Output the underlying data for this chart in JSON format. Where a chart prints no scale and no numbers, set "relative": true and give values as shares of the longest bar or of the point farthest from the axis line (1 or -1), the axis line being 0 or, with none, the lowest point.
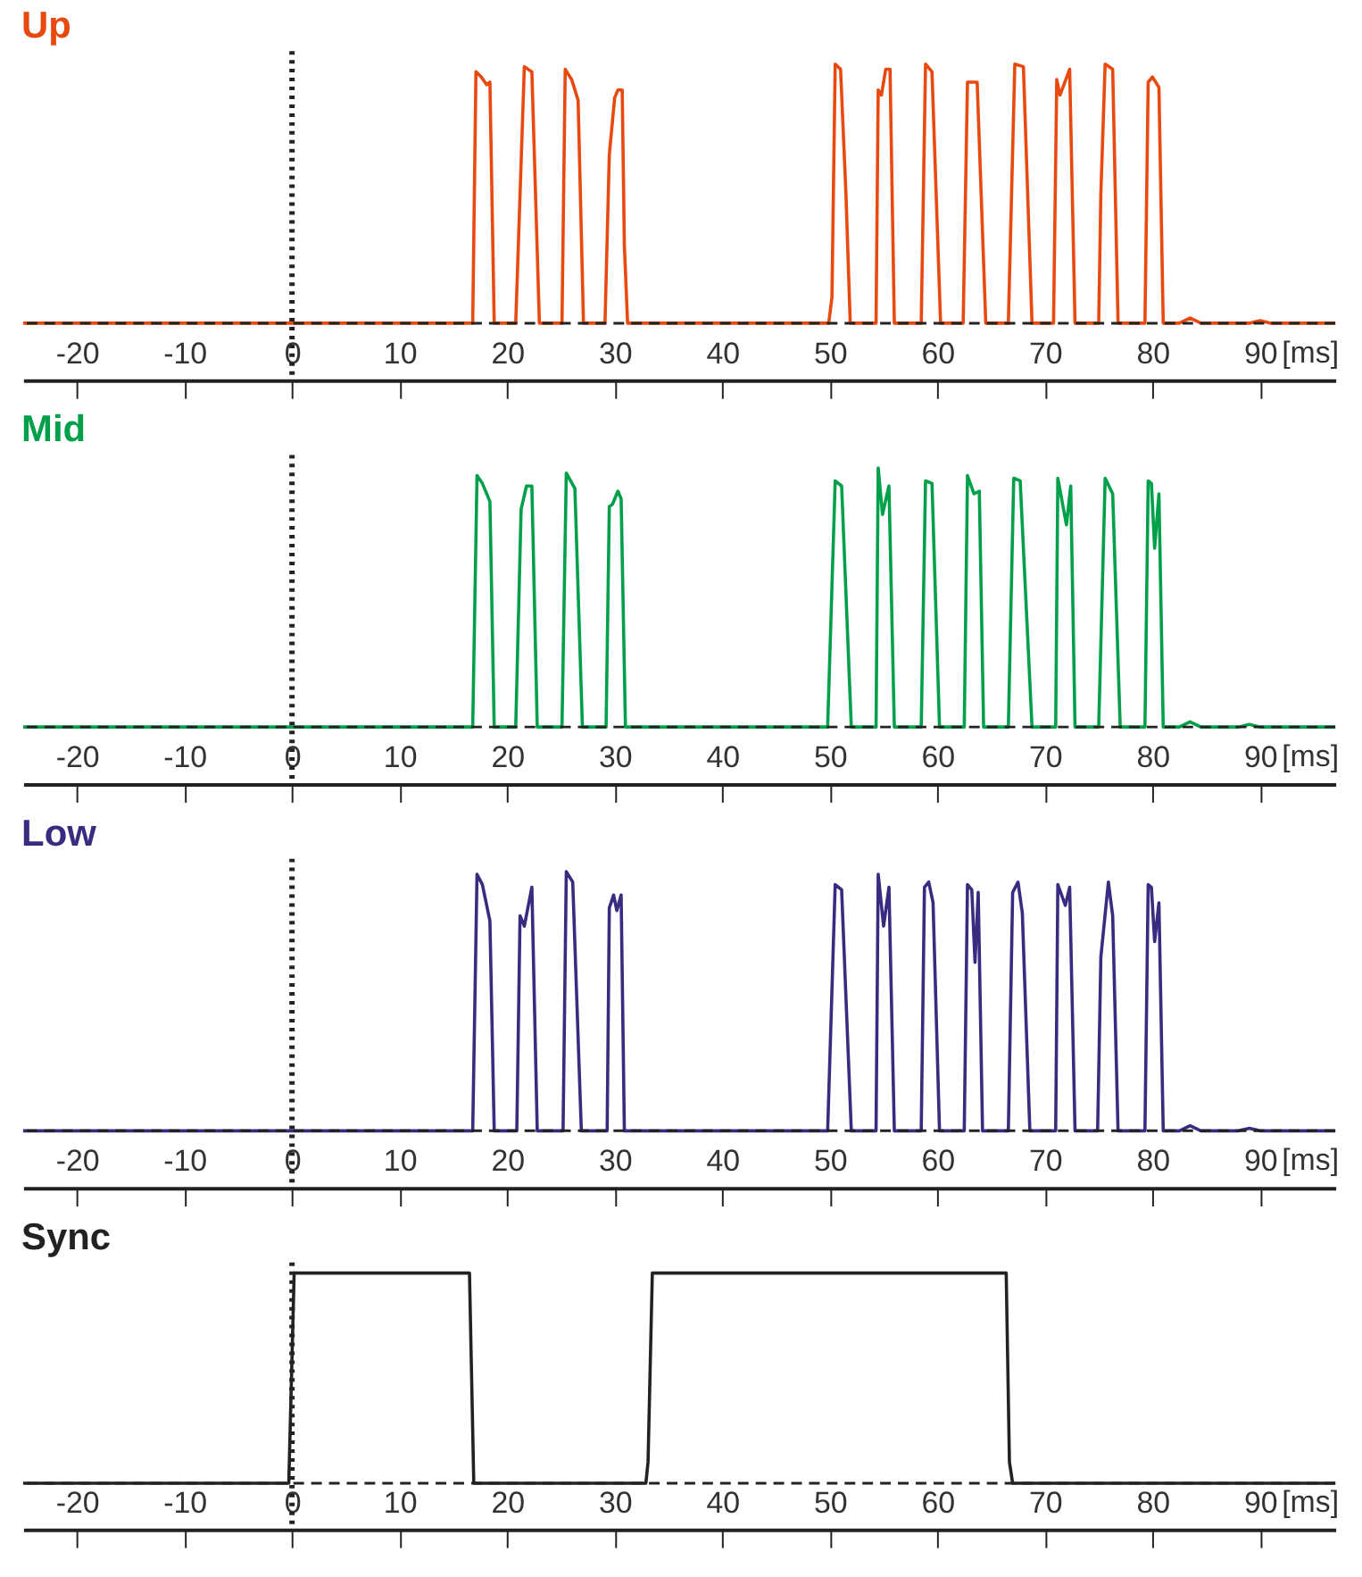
{
  "chart_data": [
    {
      "type": "line",
      "title": "Up",
      "xlabel": "[ms]",
      "relative": true,
      "xlim": [
        -25,
        97
      ],
      "xticks": [
        -20,
        -10,
        0,
        10,
        20,
        30,
        40,
        50,
        60,
        70,
        80,
        90
      ],
      "ref_lines": [
        {
          "axis": "x",
          "value": 0,
          "color": "#222222",
          "line_style": "dotted"
        },
        {
          "axis": "y",
          "value": 0,
          "color": "#222222",
          "line_style": "dashed"
        }
      ],
      "series": [
        {
          "color": "#e8490f",
          "x": [
            -25,
            16.8,
            17.1,
            17.6,
            18.1,
            18.4,
            18.8,
            20.8,
            21.6,
            22.3,
            23.0,
            25.1,
            25.4,
            26.0,
            26.6,
            27.1,
            29.1,
            29.5,
            30.0,
            30.3,
            30.7,
            30.9,
            31.2,
            49.9,
            50.2,
            50.5,
            51.0,
            51.5,
            51.9,
            54.3,
            54.5,
            54.8,
            55.2,
            55.6,
            56.0,
            58.5,
            58.9,
            59.5,
            60.3,
            62.4,
            62.8,
            63.7,
            64.5,
            66.6,
            67.2,
            68.0,
            68.8,
            70.8,
            71.1,
            71.4,
            72.3,
            72.8,
            75.0,
            75.2,
            75.6,
            76.3,
            76.8,
            79.3,
            79.6,
            80.0,
            80.6,
            81.0,
            82.5,
            83.5,
            84.5,
            89,
            90,
            91,
            97
          ],
          "values": [
            0,
            0,
            0.97,
            0.95,
            0.92,
            0.93,
            0,
            0,
            0.99,
            0.97,
            0,
            0,
            0.98,
            0.94,
            0.86,
            0,
            0,
            0.65,
            0.87,
            0.9,
            0.9,
            0.3,
            0,
            0,
            0.1,
            1.0,
            0.98,
            0.5,
            0,
            0,
            0.9,
            0.88,
            0.98,
            0.98,
            0,
            0,
            1.0,
            0.97,
            0,
            0,
            0.93,
            0.93,
            0,
            0,
            1.0,
            0.99,
            0,
            0,
            0.94,
            0.88,
            0.98,
            0,
            0,
            0.5,
            1.0,
            0.98,
            0,
            0,
            0.93,
            0.95,
            0.91,
            0,
            0,
            0.02,
            0,
            0,
            0.01,
            0,
            0
          ]
        }
      ]
    },
    {
      "type": "line",
      "title": "Mid",
      "xlabel": "[ms]",
      "relative": true,
      "xlim": [
        -25,
        97
      ],
      "xticks": [
        -20,
        -10,
        0,
        10,
        20,
        30,
        40,
        50,
        60,
        70,
        80,
        90
      ],
      "ref_lines": [
        {
          "axis": "x",
          "value": 0,
          "color": "#222222",
          "line_style": "dotted"
        },
        {
          "axis": "y",
          "value": 0,
          "color": "#222222",
          "line_style": "dashed"
        }
      ],
      "series": [
        {
          "color": "#00a04a",
          "x": [
            -25,
            16.8,
            17.2,
            17.7,
            18.4,
            18.8,
            20.8,
            21.3,
            21.8,
            22.3,
            22.8,
            25.1,
            25.5,
            26.3,
            27.0,
            29.2,
            29.5,
            29.8,
            30.3,
            30.6,
            31.0,
            49.8,
            50.5,
            51.1,
            52.0,
            54.3,
            54.5,
            54.9,
            55.5,
            56.0,
            58.5,
            58.9,
            59.5,
            60.2,
            62.5,
            62.8,
            63.4,
            63.9,
            64.3,
            66.6,
            67.1,
            67.7,
            68.8,
            71.0,
            71.2,
            72.0,
            72.4,
            72.8,
            75.0,
            75.6,
            76.3,
            77.0,
            79.3,
            79.6,
            79.9,
            80.2,
            80.6,
            81.0,
            82.5,
            83.5,
            84.5,
            88,
            89,
            90,
            97
          ],
          "values": [
            0,
            0,
            0.97,
            0.94,
            0.87,
            0,
            0,
            0.84,
            0.93,
            0.93,
            0,
            0,
            0.98,
            0.92,
            0,
            0,
            0.85,
            0.86,
            0.91,
            0.88,
            0,
            0,
            0.95,
            0.93,
            0,
            0,
            1.0,
            0.82,
            0.93,
            0,
            0,
            0.95,
            0.94,
            0,
            0,
            0.97,
            0.9,
            0.91,
            0,
            0,
            0.96,
            0.95,
            0,
            0,
            0.96,
            0.78,
            0.93,
            0,
            0,
            0.96,
            0.9,
            0,
            0,
            0.95,
            0.94,
            0.69,
            0.9,
            0,
            0,
            0.02,
            0,
            0,
            0.01,
            0,
            0
          ]
        }
      ]
    },
    {
      "type": "line",
      "title": "Low",
      "xlabel": "[ms]",
      "relative": true,
      "xlim": [
        -25,
        97
      ],
      "xticks": [
        -20,
        -10,
        0,
        10,
        20,
        30,
        40,
        50,
        60,
        70,
        80,
        90
      ],
      "ref_lines": [
        {
          "axis": "x",
          "value": 0,
          "color": "#222222",
          "line_style": "dotted"
        },
        {
          "axis": "y",
          "value": 0,
          "color": "#222222",
          "line_style": "dashed"
        }
      ],
      "series": [
        {
          "color": "#3a2a80",
          "x": [
            -25,
            16.8,
            17.2,
            17.7,
            18.4,
            18.8,
            20.9,
            21.2,
            21.6,
            22.3,
            22.8,
            25.2,
            25.5,
            26.1,
            26.9,
            29.3,
            29.5,
            29.9,
            30.2,
            30.6,
            30.9,
            49.8,
            50.5,
            51.1,
            52.0,
            54.3,
            54.5,
            55.0,
            55.5,
            56.0,
            58.5,
            58.8,
            59.2,
            59.6,
            60.2,
            62.5,
            62.8,
            63.2,
            63.5,
            63.8,
            64.2,
            66.6,
            67.0,
            67.5,
            67.9,
            68.6,
            71.0,
            71.2,
            71.9,
            72.3,
            72.8,
            74.9,
            75.2,
            75.9,
            76.3,
            76.8,
            79.3,
            79.6,
            79.9,
            80.2,
            80.6,
            81.0,
            82.5,
            83.5,
            84.5,
            88,
            89,
            90,
            97
          ],
          "values": [
            0,
            0,
            0.99,
            0.95,
            0.81,
            0,
            0,
            0.83,
            0.79,
            0.94,
            0,
            0,
            1.0,
            0.96,
            0,
            0,
            0.86,
            0.91,
            0.85,
            0.91,
            0,
            0,
            0.95,
            0.93,
            0,
            0,
            0.99,
            0.79,
            0.94,
            0,
            0,
            0.94,
            0.96,
            0.88,
            0,
            0,
            0.95,
            0.93,
            0.65,
            0.92,
            0,
            0,
            0.92,
            0.96,
            0.84,
            0,
            0,
            0.95,
            0.87,
            0.94,
            0,
            0,
            0.67,
            0.96,
            0.83,
            0,
            0,
            0.95,
            0.94,
            0.73,
            0.88,
            0,
            0,
            0.02,
            0,
            0,
            0.01,
            0,
            0
          ]
        }
      ]
    },
    {
      "type": "line",
      "title": "Sync",
      "xlabel": "[ms]",
      "relative": true,
      "xlim": [
        -25,
        97
      ],
      "xticks": [
        -20,
        -10,
        0,
        10,
        20,
        30,
        40,
        50,
        60,
        70,
        80,
        90
      ],
      "ref_lines": [
        {
          "axis": "x",
          "value": 0,
          "color": "#222222",
          "line_style": "dotted"
        },
        {
          "axis": "y",
          "value": 0,
          "color": "#222222",
          "line_style": "dashed"
        }
      ],
      "series": [
        {
          "color": "#222222",
          "x": [
            -25,
            -0.3,
            0.2,
            16.5,
            16.9,
            32.9,
            33.1,
            33.5,
            66.4,
            66.7,
            67.0,
            97
          ],
          "values": [
            0,
            0,
            1,
            1,
            0,
            0,
            0.1,
            1,
            1,
            0.1,
            0,
            0
          ]
        }
      ]
    }
  ]
}
